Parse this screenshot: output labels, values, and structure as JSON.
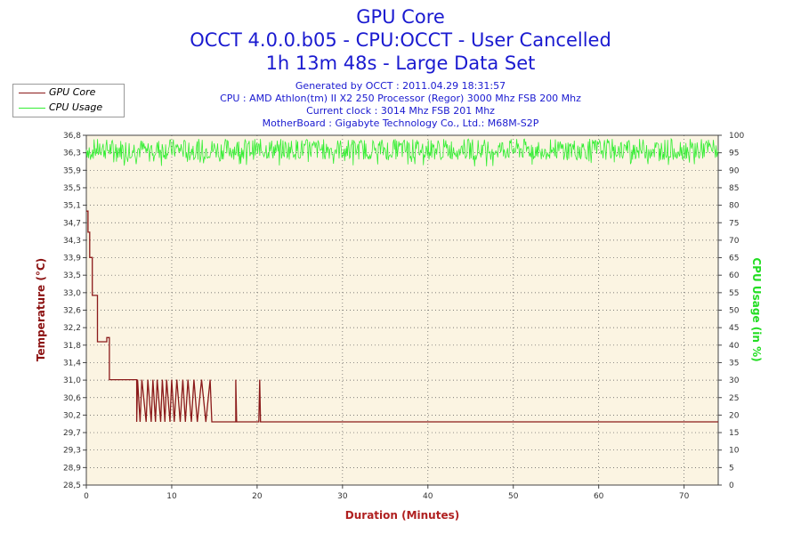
{
  "title_lines": [
    "GPU Core",
    "OCCT 4.0.0.b05 - CPU:OCCT - User Cancelled",
    "1h 13m 48s - Large Data Set"
  ],
  "info_lines": [
    "Generated by OCCT : 2011.04.29 18:31:57",
    "CPU : AMD Athlon(tm) II X2 250 Processor (Regor) 3000 Mhz FSB 200 Mhz",
    "Current clock : 3014 Mhz FSB 201 Mhz",
    "MotherBoard : Gigabyte Technology Co., Ltd.: M68M-S2P"
  ],
  "legend": [
    {
      "label": "GPU Core",
      "color": "#8b1a1a"
    },
    {
      "label": "CPU Usage",
      "color": "#33ee33"
    }
  ],
  "chart_data": {
    "type": "line",
    "xlabel": "Duration (Minutes)",
    "ylabel_left": "Temperature (°C)",
    "ylabel_right": "CPU Usage (in %)",
    "xlim": [
      0,
      74
    ],
    "ylim_left": [
      28.5,
      36.8
    ],
    "ylim_right": [
      0,
      100
    ],
    "x_ticks": [
      0,
      10,
      20,
      30,
      40,
      50,
      60,
      70
    ],
    "y_left_ticks": [
      "28,5",
      "28,9",
      "29,3",
      "29,7",
      "30,2",
      "30,6",
      "31,0",
      "31,4",
      "31,8",
      "32,2",
      "32,6",
      "33,0",
      "33,5",
      "33,9",
      "34,3",
      "34,7",
      "35,1",
      "35,5",
      "35,9",
      "36,3",
      "36,8"
    ],
    "y_right_ticks": [
      0,
      5,
      10,
      15,
      20,
      25,
      30,
      35,
      40,
      45,
      50,
      55,
      60,
      65,
      70,
      75,
      80,
      85,
      90,
      95,
      100
    ],
    "grid": true,
    "legend_position": "top-left",
    "series": [
      {
        "name": "GPU Core",
        "color": "#8b1a1a",
        "axis": "left",
        "points": [
          [
            0,
            35.0
          ],
          [
            0.2,
            35.0
          ],
          [
            0.2,
            34.5
          ],
          [
            0.4,
            34.5
          ],
          [
            0.4,
            33.9
          ],
          [
            0.7,
            33.9
          ],
          [
            0.7,
            33.0
          ],
          [
            1.3,
            33.0
          ],
          [
            1.3,
            31.9
          ],
          [
            2.4,
            31.9
          ],
          [
            2.4,
            32.0
          ],
          [
            2.7,
            32.0
          ],
          [
            2.7,
            31.0
          ],
          [
            5.9,
            31.0
          ],
          [
            5.9,
            30.0
          ],
          [
            6.0,
            31.0
          ],
          [
            6.3,
            30.0
          ],
          [
            6.5,
            31.0
          ],
          [
            7.0,
            30.0
          ],
          [
            7.2,
            31.0
          ],
          [
            7.6,
            30.0
          ],
          [
            7.8,
            31.0
          ],
          [
            8.1,
            30.0
          ],
          [
            8.3,
            31.0
          ],
          [
            8.7,
            30.0
          ],
          [
            8.9,
            31.0
          ],
          [
            9.2,
            30.0
          ],
          [
            9.4,
            31.0
          ],
          [
            9.8,
            30.0
          ],
          [
            10.0,
            31.0
          ],
          [
            10.3,
            30.0
          ],
          [
            10.6,
            31.0
          ],
          [
            11.0,
            30.0
          ],
          [
            11.3,
            31.0
          ],
          [
            11.6,
            30.0
          ],
          [
            11.9,
            31.0
          ],
          [
            12.3,
            30.0
          ],
          [
            12.6,
            31.0
          ],
          [
            13.0,
            30.0
          ],
          [
            13.5,
            31.0
          ],
          [
            14.0,
            30.0
          ],
          [
            14.5,
            31.0
          ],
          [
            14.7,
            30.0
          ],
          [
            17.5,
            30.0
          ],
          [
            17.5,
            31.0
          ],
          [
            17.6,
            30.0
          ],
          [
            20.2,
            30.0
          ],
          [
            20.3,
            31.0
          ],
          [
            20.4,
            30.0
          ],
          [
            74,
            30.0
          ]
        ]
      },
      {
        "name": "CPU Usage",
        "color": "#33ee33",
        "axis": "right",
        "base": 96,
        "range": [
          91,
          100
        ]
      }
    ]
  }
}
